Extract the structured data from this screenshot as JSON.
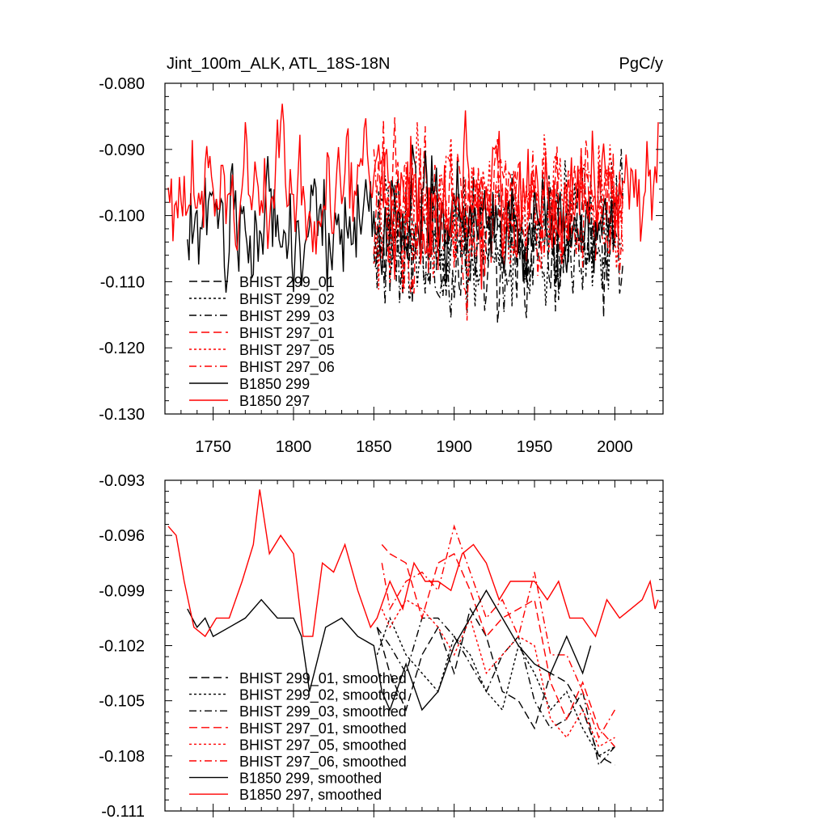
{
  "chart_data": [
    {
      "type": "line",
      "title": "Jint_100m_ALK, ATL_18S-18N",
      "units": "PgC/y",
      "xlim": [
        1720,
        2030
      ],
      "ylim": [
        -0.13,
        -0.08
      ],
      "x_ticks": [
        1750,
        1800,
        1850,
        1900,
        1950,
        2000
      ],
      "y_ticks": [
        "-0.080",
        "-0.090",
        "-0.100",
        "-0.110",
        "-0.120",
        "-0.130"
      ],
      "y_tick_values": [
        -0.08,
        -0.09,
        -0.1,
        -0.11,
        -0.12,
        -0.13
      ],
      "grid": false,
      "legend_position": "bottom-left",
      "series": [
        {
          "name": "BHIST 299_01",
          "color": "#000000",
          "dash": "dash",
          "x_range": [
            1850,
            2005
          ],
          "mean": -0.104,
          "amp": 0.0065,
          "seed": 11
        },
        {
          "name": "BHIST 299_02",
          "color": "#000000",
          "dash": "dot",
          "x_range": [
            1850,
            2005
          ],
          "mean": -0.104,
          "amp": 0.0065,
          "seed": 12
        },
        {
          "name": "BHIST 299_03",
          "color": "#000000",
          "dash": "dashdot",
          "x_range": [
            1850,
            2005
          ],
          "mean": -0.104,
          "amp": 0.0065,
          "seed": 13
        },
        {
          "name": "BHIST 297_01",
          "color": "#ff0000",
          "dash": "dash",
          "x_range": [
            1850,
            2005
          ],
          "mean": -0.099,
          "amp": 0.0065,
          "seed": 21
        },
        {
          "name": "BHIST 297_05",
          "color": "#ff0000",
          "dash": "dot",
          "x_range": [
            1850,
            2005
          ],
          "mean": -0.099,
          "amp": 0.0065,
          "seed": 22
        },
        {
          "name": "BHIST 297_06",
          "color": "#ff0000",
          "dash": "dashdot",
          "x_range": [
            1850,
            2005
          ],
          "mean": -0.099,
          "amp": 0.0065,
          "seed": 23
        },
        {
          "name": "B1850 299",
          "color": "#000000",
          "dash": "solid",
          "x_range": [
            1734,
            2000
          ],
          "mean": -0.1015,
          "amp": 0.0055,
          "seed": 31
        },
        {
          "name": "B1850 297",
          "color": "#ff0000",
          "dash": "solid",
          "x_range": [
            1722,
            2027
          ],
          "mean": -0.0975,
          "amp": 0.006,
          "seed": 41
        }
      ]
    },
    {
      "type": "line",
      "title": "",
      "xlim": [
        1720,
        2030
      ],
      "ylim": [
        -0.111,
        -0.093
      ],
      "x_ticks": [
        1750,
        1800,
        1850,
        1900,
        1950,
        2000
      ],
      "y_ticks": [
        "-0.093",
        "-0.096",
        "-0.099",
        "-0.102",
        "-0.105",
        "-0.108",
        "-0.111"
      ],
      "y_tick_values": [
        -0.093,
        -0.096,
        -0.099,
        -0.102,
        -0.105,
        -0.108,
        -0.111
      ],
      "grid": false,
      "legend_position": "bottom-left",
      "series": [
        {
          "name": "BHIST 299_01, smoothed",
          "color": "#000000",
          "dash": "dash",
          "x": [
            1852,
            1860,
            1870,
            1880,
            1890,
            1900,
            1910,
            1920,
            1930,
            1940,
            1950,
            1960,
            1970,
            1980,
            1990,
            2000
          ],
          "y": [
            -0.101,
            -0.1035,
            -0.1055,
            -0.1025,
            -0.101,
            -0.1035,
            -0.1,
            -0.1015,
            -0.1045,
            -0.105,
            -0.1065,
            -0.1035,
            -0.104,
            -0.1055,
            -0.108,
            -0.1085
          ]
        },
        {
          "name": "BHIST 299_02, smoothed",
          "color": "#000000",
          "dash": "dot",
          "x": [
            1852,
            1860,
            1870,
            1880,
            1890,
            1900,
            1910,
            1920,
            1930,
            1940,
            1950,
            1960,
            1970,
            1980,
            1990,
            2000
          ],
          "y": [
            -0.1025,
            -0.1005,
            -0.1025,
            -0.1035,
            -0.1045,
            -0.1015,
            -0.1025,
            -0.1045,
            -0.1055,
            -0.102,
            -0.1035,
            -0.1055,
            -0.1045,
            -0.1065,
            -0.108,
            -0.1075
          ]
        },
        {
          "name": "BHIST 299_03, smoothed",
          "color": "#000000",
          "dash": "dashdot",
          "x": [
            1852,
            1860,
            1870,
            1880,
            1890,
            1900,
            1910,
            1920,
            1930,
            1940,
            1950,
            1960,
            1970,
            1980,
            1990,
            2000
          ],
          "y": [
            -0.101,
            -0.102,
            -0.1035,
            -0.1005,
            -0.1005,
            -0.1015,
            -0.103,
            -0.1045,
            -0.1025,
            -0.1015,
            -0.105,
            -0.1065,
            -0.106,
            -0.1045,
            -0.1085,
            -0.1075
          ]
        },
        {
          "name": "BHIST 297_01, smoothed",
          "color": "#ff0000",
          "dash": "dash",
          "x": [
            1855,
            1860,
            1870,
            1880,
            1890,
            1900,
            1910,
            1920,
            1930,
            1940,
            1950,
            1960,
            1970,
            1980,
            1990,
            2000
          ],
          "y": [
            -0.0965,
            -0.097,
            -0.0975,
            -0.1005,
            -0.0975,
            -0.097,
            -0.099,
            -0.1015,
            -0.1005,
            -0.1,
            -0.0995,
            -0.104,
            -0.106,
            -0.104,
            -0.1065,
            -0.1075
          ]
        },
        {
          "name": "BHIST 297_05, smoothed",
          "color": "#ff0000",
          "dash": "dot",
          "x": [
            1855,
            1860,
            1870,
            1880,
            1890,
            1900,
            1910,
            1920,
            1930,
            1940,
            1950,
            1960,
            1970,
            1980,
            1990,
            2000
          ],
          "y": [
            -0.1,
            -0.101,
            -0.0995,
            -0.1,
            -0.101,
            -0.1025,
            -0.1005,
            -0.1035,
            -0.1025,
            -0.1015,
            -0.102,
            -0.106,
            -0.107,
            -0.1055,
            -0.1075,
            -0.107
          ]
        },
        {
          "name": "BHIST 297_06, smoothed",
          "color": "#ff0000",
          "dash": "dashdot",
          "x": [
            1855,
            1860,
            1870,
            1880,
            1890,
            1900,
            1910,
            1920,
            1930,
            1940,
            1950,
            1960,
            1970,
            1980,
            1990,
            2000
          ],
          "y": [
            -0.0975,
            -0.1,
            -0.0985,
            -0.098,
            -0.099,
            -0.0955,
            -0.098,
            -0.1005,
            -0.0995,
            -0.1015,
            -0.098,
            -0.1025,
            -0.1025,
            -0.1045,
            -0.107,
            -0.1055
          ]
        },
        {
          "name": "B1850 299, smoothed",
          "color": "#000000",
          "dash": "solid",
          "x": [
            1734,
            1740,
            1745,
            1750,
            1760,
            1770,
            1780,
            1790,
            1800,
            1805,
            1810,
            1820,
            1830,
            1840,
            1850,
            1855,
            1860,
            1870,
            1880,
            1890,
            1900,
            1910,
            1920,
            1930,
            1940,
            1950,
            1960,
            1970,
            1980,
            1985
          ],
          "y": [
            -0.1,
            -0.101,
            -0.1005,
            -0.1015,
            -0.101,
            -0.1005,
            -0.0995,
            -0.1005,
            -0.1005,
            -0.1015,
            -0.1045,
            -0.101,
            -0.1005,
            -0.1015,
            -0.102,
            -0.1045,
            -0.1055,
            -0.103,
            -0.1055,
            -0.1045,
            -0.102,
            -0.1005,
            -0.099,
            -0.1005,
            -0.102,
            -0.103,
            -0.1035,
            -0.1015,
            -0.1035,
            -0.102
          ]
        },
        {
          "name": "B1850 297, smoothed",
          "color": "#ff0000",
          "dash": "solid",
          "x": [
            1722,
            1727,
            1732,
            1738,
            1745,
            1752,
            1760,
            1768,
            1775,
            1779,
            1785,
            1792,
            1800,
            1806,
            1812,
            1818,
            1825,
            1832,
            1840,
            1848,
            1852,
            1860,
            1868,
            1875,
            1882,
            1890,
            1898,
            1905,
            1912,
            1920,
            1928,
            1935,
            1942,
            1950,
            1958,
            1965,
            1972,
            1980,
            1988,
            1995,
            2003,
            2010,
            2017,
            2022,
            2025,
            2027
          ],
          "y": [
            -0.0955,
            -0.096,
            -0.0985,
            -0.101,
            -0.1015,
            -0.1005,
            -0.1005,
            -0.0985,
            -0.0965,
            -0.0935,
            -0.097,
            -0.096,
            -0.097,
            -0.1015,
            -0.1015,
            -0.0975,
            -0.098,
            -0.0965,
            -0.099,
            -0.101,
            -0.1005,
            -0.0985,
            -0.1,
            -0.0975,
            -0.0985,
            -0.0985,
            -0.099,
            -0.097,
            -0.0965,
            -0.0975,
            -0.0995,
            -0.0985,
            -0.0985,
            -0.0985,
            -0.0995,
            -0.0985,
            -0.1005,
            -0.1005,
            -0.1015,
            -0.0995,
            -0.1005,
            -0.1,
            -0.0995,
            -0.0985,
            -0.1,
            -0.0995
          ]
        }
      ]
    }
  ]
}
